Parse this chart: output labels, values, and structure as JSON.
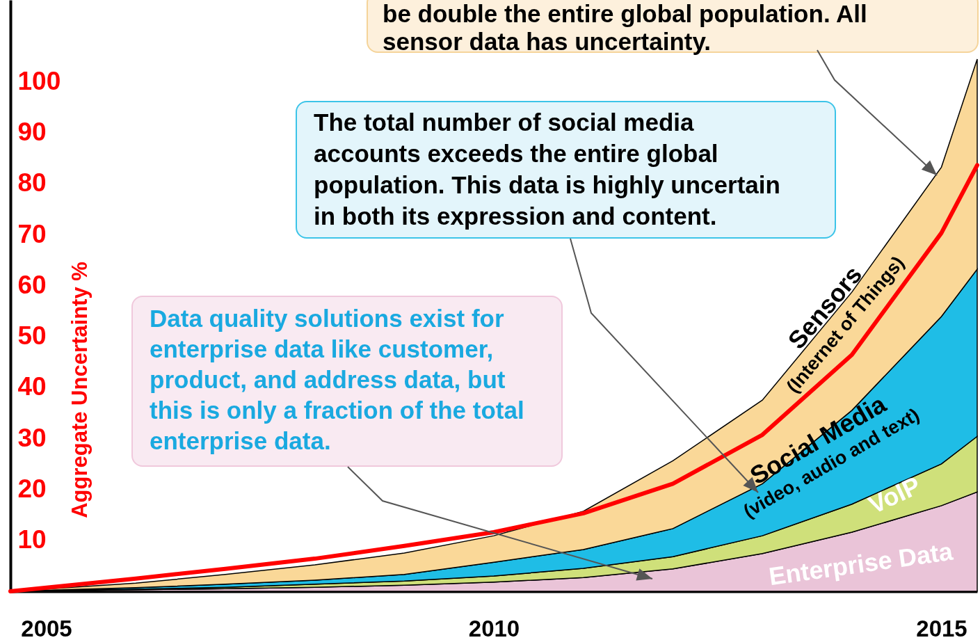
{
  "chart_data": {
    "type": "area",
    "stacked": true,
    "ylabel": "Aggregate Uncertainty %",
    "x": [
      2004.6,
      2006,
      2007,
      2008,
      2009,
      2010,
      2011,
      2012,
      2013,
      2014,
      2015,
      2015.4
    ],
    "xlim": [
      2004.6,
      2015.4
    ],
    "xticks": [
      2005,
      2010,
      2015
    ],
    "ylim": [
      0,
      116
    ],
    "yticks": [
      10,
      20,
      30,
      40,
      50,
      60,
      70,
      80,
      90,
      100
    ],
    "grid": false,
    "series": [
      {
        "name": "Enterprise Data",
        "color": "#eac4d8",
        "values": [
          0,
          0.3,
          0.5,
          0.8,
          1.2,
          1.8,
          2.7,
          4.4,
          7.4,
          11.6,
          16.8,
          19.5
        ]
      },
      {
        "name": "VoIP",
        "color": "#cfe07a",
        "values": [
          0,
          0.1,
          0.3,
          0.6,
          0.8,
          1.2,
          1.8,
          2.4,
          3.5,
          5.5,
          8.2,
          10.9
        ]
      },
      {
        "name": "Social Media\n(video, audio and text)",
        "color": "#1fbde6",
        "values": [
          0,
          0.3,
          0.6,
          0.8,
          1.3,
          2.7,
          3.7,
          5.5,
          10.2,
          18.4,
          28.9,
          32.8
        ]
      },
      {
        "name": "Sensors\n(Internet of Things)",
        "color": "#fad898",
        "values": [
          0,
          0.9,
          1.9,
          3.0,
          4.2,
          5.2,
          7.5,
          13.3,
          16.4,
          23.2,
          29.3,
          41.2
        ]
      },
      {
        "type": "line",
        "color": "#ff0000",
        "values": [
          0,
          2.5,
          4.4,
          6.4,
          8.9,
          11.6,
          15.3,
          21.1,
          30.7,
          46.4,
          70.3,
          83.6
        ]
      }
    ],
    "annotations": [
      {
        "text": "be double the entire global population. All sensor data has uncertainty.",
        "x": 2014.95,
        "y": 81.6
      },
      "The total number of social media accounts exceeds the entire global population. This data is highly uncertain in both its expression and content.",
      "Data quality solutions exist for enterprise data like customer, product, and address data, but this is only a fraction of the total enterprise data."
    ]
  }
}
